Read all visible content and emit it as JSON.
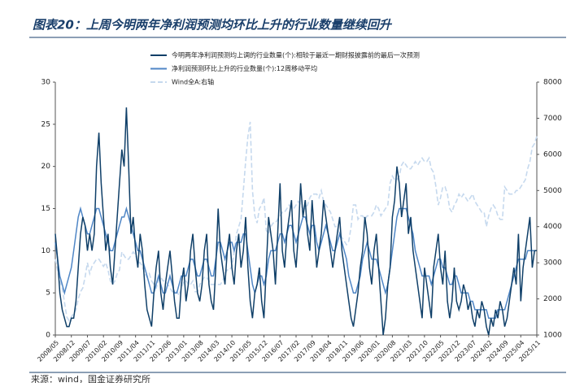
{
  "chart_data": {
    "type": "line",
    "title": "图表20：上周今明两年净利润预测均环比上升的行业数量继续回升",
    "source": "来源：wind，国金证券研究所",
    "categories": [
      "2008/05",
      null,
      null,
      null,
      null,
      null,
      null,
      "2008/12",
      null,
      null,
      null,
      null,
      null,
      null,
      "2009/07",
      null,
      null,
      null,
      null,
      null,
      null,
      "2010/02",
      null,
      null,
      null,
      null,
      null,
      null,
      "2010/09",
      null,
      null,
      null,
      null,
      null,
      null,
      "2011/04",
      null,
      null,
      null,
      null,
      null,
      null,
      "2011/11",
      null,
      null,
      null,
      null,
      null,
      null,
      "2012/06",
      null,
      null,
      null,
      null,
      null,
      null,
      "2013/01",
      null,
      null,
      null,
      null,
      null,
      null,
      "2013/08",
      null,
      null,
      null,
      null,
      null,
      null,
      "2014/03",
      null,
      null,
      null,
      null,
      null,
      null,
      "2014/10",
      null,
      null,
      null,
      null,
      null,
      null,
      "2015/05",
      null,
      null,
      null,
      null,
      null,
      null,
      "2015/12",
      null,
      null,
      null,
      null,
      null,
      null,
      "2016/07",
      null,
      null,
      null,
      null,
      null,
      null,
      "2017/02",
      null,
      null,
      null,
      null,
      null,
      null,
      "2017/09",
      null,
      null,
      null,
      null,
      null,
      null,
      "2018/04",
      null,
      null,
      null,
      null,
      null,
      null,
      "2018/11",
      null,
      null,
      null,
      null,
      null,
      null,
      "2019/06",
      null,
      null,
      null,
      null,
      null,
      null,
      "2020/01",
      null,
      null,
      null,
      null,
      null,
      null,
      "2020/08",
      null,
      null,
      null,
      null,
      null,
      null,
      "2021/03",
      null,
      null,
      null,
      null,
      null,
      null,
      "2021/10",
      null,
      null,
      null,
      null,
      null,
      null,
      "2022/05",
      null,
      null,
      null,
      null,
      null,
      null,
      "2022/12",
      null,
      null,
      null,
      null,
      null,
      null,
      "2023/07",
      null,
      null,
      null,
      null,
      null,
      null,
      "2024/02",
      null,
      null,
      null,
      null,
      null,
      null,
      "2024/09",
      null,
      null,
      null,
      null,
      null,
      null,
      "2025/04",
      null,
      null,
      null,
      null,
      null,
      null,
      "2025/11"
    ],
    "series": [
      {
        "name": "今明两年净利润预测均上调的行业数量(个):相较于最近一期财报披露前的最后一次预测",
        "color": "#0f3f68",
        "dash": false,
        "axis": "y",
        "values": [
          12,
          9,
          5,
          3,
          2,
          1,
          1,
          2,
          2,
          4,
          8,
          12,
          14,
          13,
          10,
          12,
          10,
          12,
          20,
          24,
          18,
          14,
          10,
          12,
          8,
          6,
          10,
          14,
          18,
          22,
          20,
          27,
          20,
          12,
          14,
          10,
          8,
          12,
          10,
          6,
          3,
          2,
          1,
          5,
          8,
          10,
          5,
          3,
          6,
          8,
          10,
          7,
          4,
          2,
          2,
          6,
          8,
          4,
          6,
          10,
          12,
          8,
          5,
          4,
          6,
          10,
          12,
          6,
          4,
          3,
          8,
          15,
          10,
          8,
          6,
          10,
          12,
          8,
          6,
          10,
          12,
          8,
          10,
          14,
          8,
          4,
          2,
          5,
          6,
          8,
          4,
          2,
          8,
          14,
          12,
          10,
          6,
          12,
          18,
          10,
          8,
          12,
          14,
          16,
          10,
          8,
          12,
          18,
          14,
          16,
          12,
          10,
          16,
          12,
          8,
          10,
          12,
          16,
          14,
          12,
          10,
          8,
          10,
          12,
          14,
          10,
          8,
          6,
          4,
          2,
          1,
          3,
          5,
          8,
          10,
          14,
          12,
          8,
          6,
          10,
          12,
          8,
          4,
          0,
          2,
          6,
          8,
          14,
          16,
          20,
          18,
          14,
          16,
          18,
          12,
          14,
          10,
          8,
          6,
          4,
          2,
          8,
          6,
          4,
          2,
          8,
          10,
          12,
          8,
          6,
          10,
          4,
          2,
          4,
          8,
          4,
          3,
          4,
          6,
          5,
          3,
          4,
          2,
          1,
          3,
          2,
          4,
          3,
          1,
          0,
          2,
          1,
          3,
          2,
          4,
          3,
          1,
          2,
          4,
          6,
          8,
          6,
          12,
          4,
          8,
          10,
          12,
          14,
          8,
          10,
          10
        ]
      },
      {
        "name": "净利润预测环比上升的行业数量(个):12周移动平均",
        "color": "#4f86c6",
        "dash": false,
        "axis": "y",
        "values": [
          11,
          9,
          7,
          6,
          5,
          6,
          7,
          8,
          10,
          12,
          14,
          15,
          14,
          13,
          12,
          12,
          13,
          14,
          15,
          15,
          14,
          13,
          12,
          11,
          10,
          10,
          11,
          12,
          13,
          14,
          14,
          15,
          14,
          13,
          12,
          11,
          10,
          10,
          9,
          8,
          7,
          6,
          5,
          5,
          6,
          7,
          6,
          5,
          5,
          6,
          7,
          6,
          5,
          5,
          6,
          7,
          7,
          7,
          8,
          9,
          9,
          8,
          7,
          7,
          8,
          9,
          9,
          8,
          7,
          7,
          9,
          11,
          11,
          10,
          9,
          10,
          11,
          11,
          10,
          11,
          11,
          11,
          12,
          12,
          10,
          8,
          6,
          5,
          6,
          7,
          7,
          6,
          7,
          9,
          10,
          10,
          10,
          11,
          12,
          12,
          11,
          12,
          13,
          13,
          12,
          11,
          12,
          13,
          14,
          14,
          13,
          12,
          13,
          13,
          11,
          10,
          11,
          12,
          13,
          12,
          11,
          10,
          10,
          11,
          12,
          11,
          10,
          9,
          7,
          6,
          5,
          5,
          6,
          7,
          9,
          10,
          11,
          10,
          9,
          9,
          9,
          8,
          7,
          6,
          5,
          6,
          8,
          10,
          12,
          14,
          15,
          15,
          15,
          15,
          14,
          13,
          12,
          10,
          9,
          8,
          7,
          7,
          7,
          7,
          6,
          7,
          8,
          9,
          9,
          8,
          8,
          7,
          6,
          6,
          7,
          7,
          6,
          5,
          5,
          5,
          5,
          4,
          4,
          3,
          3,
          3,
          3,
          3,
          3,
          2,
          2,
          2,
          2,
          3,
          3,
          3,
          3,
          4,
          5,
          6,
          7,
          8,
          9,
          9,
          9,
          9,
          10,
          10,
          10,
          10,
          10
        ]
      },
      {
        "name": "Wind全A:右轴",
        "color": "#c6d9ee",
        "dash": true,
        "axis": "y2",
        "values": [
          3100,
          2800,
          2500,
          2300,
          1900,
          1500,
          1400,
          1500,
          1600,
          1700,
          2000,
          2200,
          2300,
          2600,
          3000,
          2700,
          2900,
          3000,
          3100,
          3100,
          3000,
          2900,
          3000,
          2800,
          2500,
          2400,
          2500,
          2700,
          2800,
          3300,
          3200,
          3100,
          3100,
          3200,
          3300,
          3200,
          3000,
          3000,
          2900,
          2700,
          2600,
          2700,
          2500,
          2400,
          2300,
          2500,
          2600,
          2500,
          2500,
          2400,
          2300,
          2200,
          2200,
          2200,
          2100,
          2300,
          2500,
          2500,
          2400,
          2400,
          2500,
          2200,
          2200,
          2400,
          2500,
          2600,
          2600,
          2500,
          2400,
          2400,
          2400,
          2400,
          2400,
          2500,
          2700,
          2800,
          2800,
          2900,
          3300,
          3800,
          4000,
          4200,
          5000,
          5800,
          6500,
          6900,
          5000,
          4300,
          4100,
          4500,
          4600,
          4800,
          3900,
          3800,
          4000,
          4100,
          4100,
          4200,
          4300,
          4400,
          4400,
          4500,
          4600,
          4500,
          4500,
          4600,
          4700,
          4600,
          4500,
          4500,
          4600,
          4800,
          4900,
          4900,
          4900,
          4800,
          5000,
          4700,
          4600,
          4500,
          4400,
          4200,
          4000,
          4000,
          3800,
          3700,
          3600,
          3500,
          3600,
          4000,
          4600,
          4600,
          4200,
          4300,
          4300,
          4200,
          4300,
          4300,
          4300,
          4400,
          4600,
          4500,
          4300,
          4400,
          4500,
          4600,
          5200,
          5400,
          5300,
          5300,
          5400,
          5700,
          5800,
          5700,
          5600,
          5600,
          5700,
          5800,
          5700,
          5800,
          5900,
          5800,
          5800,
          5900,
          5600,
          5500,
          5100,
          4600,
          4800,
          5100,
          5100,
          4900,
          4500,
          4400,
          4600,
          4700,
          4900,
          4800,
          4900,
          4800,
          4700,
          4800,
          4900,
          4700,
          4600,
          4500,
          4400,
          4400,
          4000,
          4300,
          4500,
          4600,
          4500,
          4300,
          4200,
          4200,
          5100,
          5000,
          4900,
          4900,
          4900,
          5000,
          5000,
          5100,
          5200,
          5300,
          5600,
          5800,
          6200,
          6300,
          6500
        ]
      }
    ],
    "ylim": [
      0,
      30
    ],
    "yticks": [
      0,
      5,
      10,
      15,
      20,
      25,
      30
    ],
    "y2lim": [
      1000,
      8000
    ],
    "y2ticks": [
      1000,
      2000,
      3000,
      4000,
      5000,
      6000,
      7000,
      8000
    ]
  }
}
